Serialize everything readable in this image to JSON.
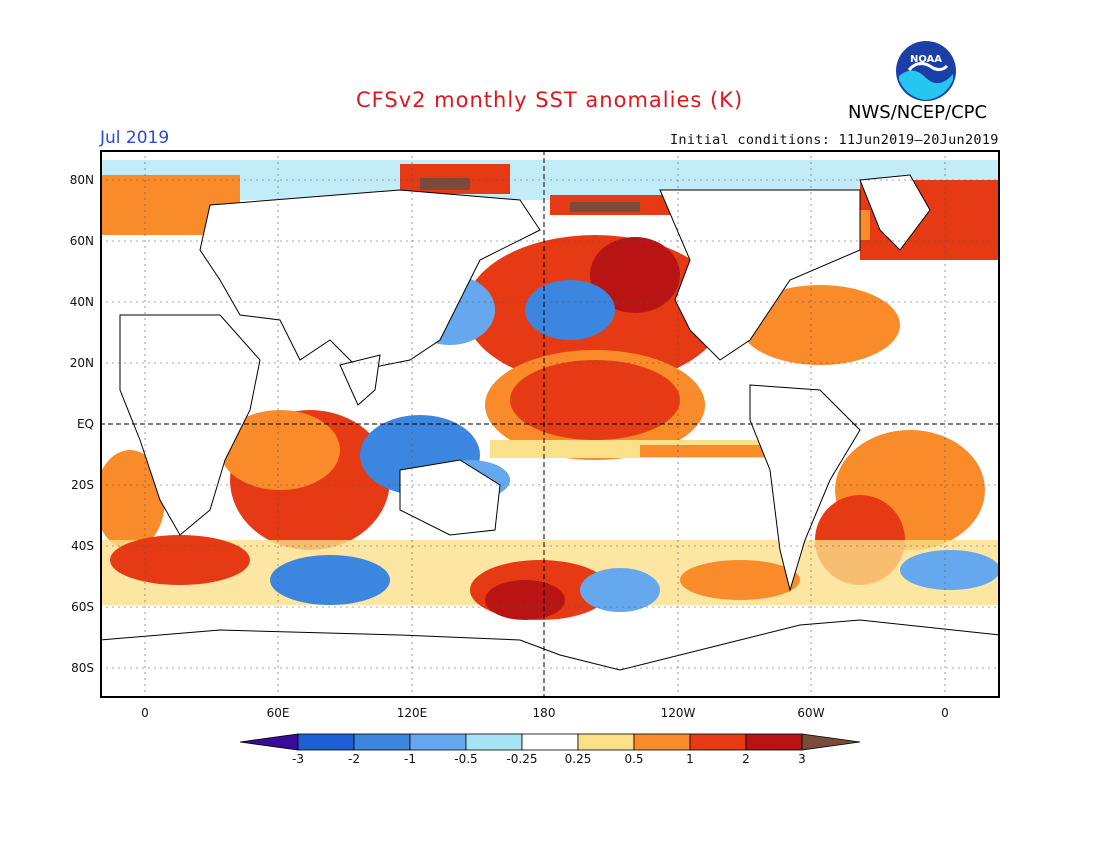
{
  "header": {
    "title": "CFSv2 monthly SST anomalies (K)",
    "month": "Jul 2019",
    "initial_conditions": "Initial conditions: 11Jun2019–20Jun2019",
    "agency": "NWS/NCEP/CPC",
    "logo_text": "NOAA"
  },
  "map": {
    "lat_labels": [
      "80N",
      "60N",
      "40N",
      "20N",
      "EQ",
      "20S",
      "40S",
      "60S",
      "80S"
    ],
    "lon_labels": [
      "0",
      "60E",
      "120E",
      "180",
      "120W",
      "60W",
      "0"
    ],
    "colors": {
      "ocean_base": "#ffffff",
      "land": "#ffffff",
      "coast": "#000000"
    }
  },
  "colorbar": {
    "labels": [
      "-3",
      "-2",
      "-1",
      "-0.5",
      "-0.25",
      "0.25",
      "0.5",
      "1",
      "2",
      "3"
    ],
    "colors": [
      "#3a0a9a",
      "#1f5fd6",
      "#3d86e0",
      "#66a8ee",
      "#a6e4f5",
      "#ffffff",
      "#fbe08a",
      "#f98b2a",
      "#e63a14",
      "#b81414",
      "#7a4a3a"
    ]
  }
}
